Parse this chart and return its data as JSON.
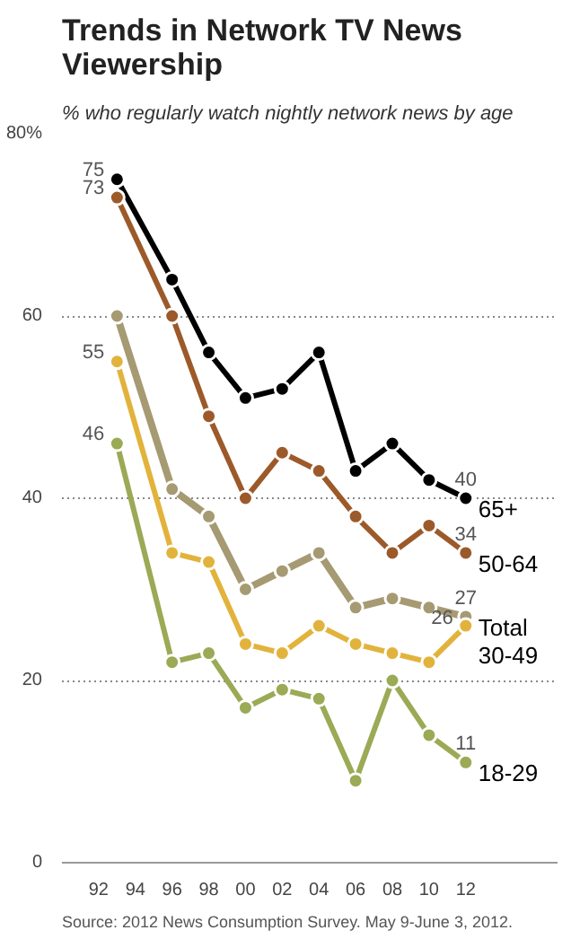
{
  "chart_data": {
    "type": "line",
    "title": "Trends in Network TV News Viewership",
    "subtitle": "% who regularly watch nightly network news by age",
    "x": [
      1993,
      1996,
      1998,
      2000,
      2002,
      2004,
      2006,
      2008,
      2010,
      2012
    ],
    "xlim": [
      1990,
      2017
    ],
    "xticks": [
      {
        "value": 1992,
        "label": "92"
      },
      {
        "value": 1994,
        "label": "94"
      },
      {
        "value": 1996,
        "label": "96"
      },
      {
        "value": 1998,
        "label": "98"
      },
      {
        "value": 2000,
        "label": "00"
      },
      {
        "value": 2002,
        "label": "02"
      },
      {
        "value": 2004,
        "label": "04"
      },
      {
        "value": 2006,
        "label": "06"
      },
      {
        "value": 2008,
        "label": "08"
      },
      {
        "value": 2010,
        "label": "10"
      },
      {
        "value": 2012,
        "label": "12"
      }
    ],
    "ylim": [
      0,
      80
    ],
    "yticks": [
      0,
      20,
      40,
      60,
      {
        "value": 80,
        "label": "80%"
      }
    ],
    "grid": "y",
    "marker": "circle",
    "series": [
      {
        "name": "65+",
        "color": "#000000",
        "values": [
          75,
          64,
          56,
          51,
          52,
          56,
          43,
          46,
          42,
          40
        ],
        "value_labels": [
          "75",
          null,
          null,
          null,
          null,
          null,
          null,
          null,
          null,
          "40"
        ]
      },
      {
        "name": "50-64",
        "color": "#9c5a2a",
        "values": [
          73,
          60,
          49,
          40,
          45,
          43,
          38,
          34,
          37,
          34
        ],
        "value_labels": [
          "73",
          null,
          null,
          null,
          null,
          null,
          null,
          null,
          null,
          "34"
        ]
      },
      {
        "name": "Total",
        "color": "#a69a73",
        "values": [
          60,
          41,
          38,
          30,
          32,
          34,
          28,
          29,
          28,
          27
        ],
        "value_labels": [
          null,
          null,
          null,
          null,
          null,
          null,
          null,
          null,
          null,
          "27"
        ]
      },
      {
        "name": "30-49",
        "color": "#e2b33c",
        "values": [
          55,
          34,
          33,
          24,
          23,
          26,
          24,
          23,
          22,
          26
        ],
        "value_labels": [
          "55",
          null,
          null,
          null,
          null,
          null,
          null,
          null,
          null,
          "26"
        ]
      },
      {
        "name": "18-29",
        "color": "#9aaa55",
        "values": [
          46,
          22,
          23,
          17,
          19,
          18,
          9,
          20,
          14,
          11
        ],
        "value_labels": [
          "46",
          null,
          null,
          null,
          null,
          null,
          null,
          null,
          null,
          "11"
        ]
      }
    ],
    "annotations": [
      "Source: 2012 News Consumption Survey. May 9-June 3, 2012."
    ]
  }
}
